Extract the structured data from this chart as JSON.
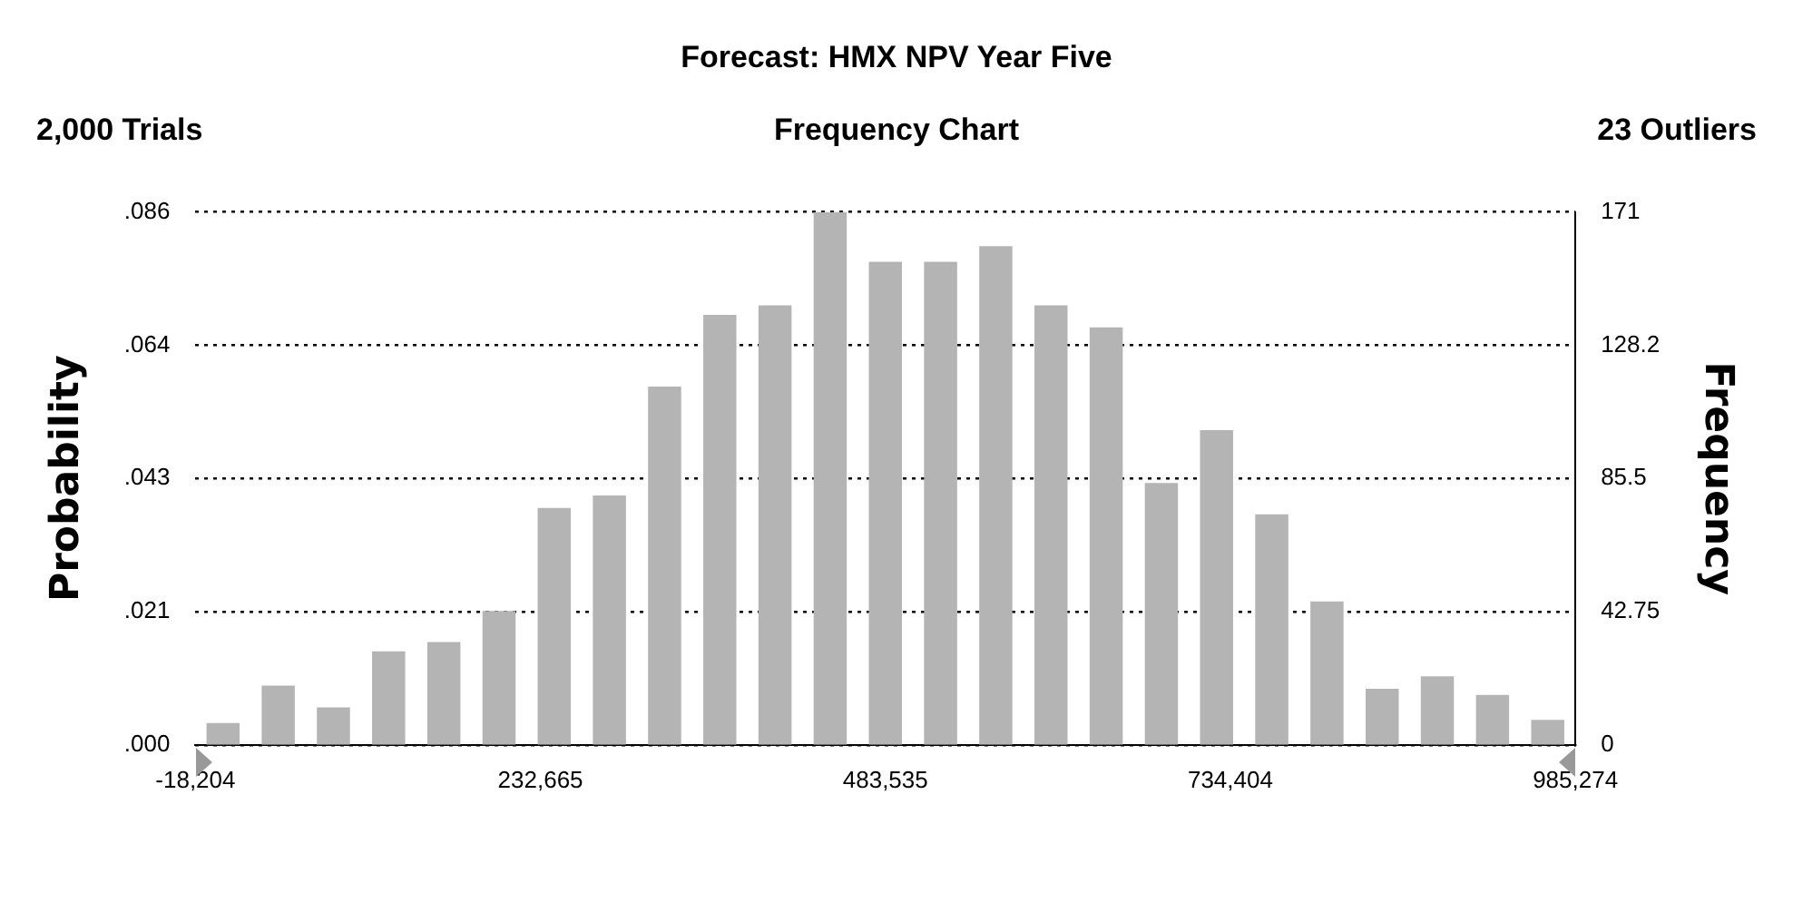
{
  "chart_data": {
    "type": "histogram",
    "title": "Forecast: HMX NPV Year Five",
    "subtitle": "Frequency Chart",
    "annotations": [
      "2,000 Trials",
      "23 Outliers"
    ],
    "ylabel": "Probability",
    "y2label": "Frequency",
    "bins": [
      -18204,
      21935,
      62074,
      102213,
      142352,
      182492,
      222631,
      262770,
      302909,
      343048,
      383187,
      423326,
      463465,
      503605,
      543744,
      583883,
      624022,
      664161,
      704300,
      744439,
      784578,
      824718,
      864857,
      904996,
      945135,
      985274
    ],
    "series": [
      {
        "color": "#b4b4b4",
        "axis": "y2",
        "values": [
          7,
          19,
          12,
          30,
          33,
          43,
          76,
          80,
          115,
          138,
          141,
          171,
          155,
          155,
          160,
          141,
          134,
          84,
          101,
          74,
          46,
          18,
          22,
          16,
          8
        ]
      }
    ],
    "xlim": [
      -18204,
      985274
    ],
    "xticks": [
      {
        "value": -18204,
        "label": "-18,204"
      },
      {
        "value": 232665,
        "label": "232,665"
      },
      {
        "value": 483535,
        "label": "483,535"
      },
      {
        "value": 734404,
        "label": "734,404"
      },
      {
        "value": 985274,
        "label": "985,274"
      }
    ],
    "ylim": [
      0,
      0.0855
    ],
    "yticks": [
      {
        "value": 0,
        "label": ".000"
      },
      {
        "value": 0.021375,
        "label": ".021"
      },
      {
        "value": 0.04275,
        "label": ".043"
      },
      {
        "value": 0.064125,
        "label": ".064"
      },
      {
        "value": 0.0855,
        "label": ".086"
      }
    ],
    "y2lim": [
      0,
      171
    ],
    "y2ticks": [
      0,
      42.75,
      85.5,
      {
        "value": 128.25,
        "label": "128.2"
      },
      171
    ],
    "grid": "y",
    "legend": false
  }
}
